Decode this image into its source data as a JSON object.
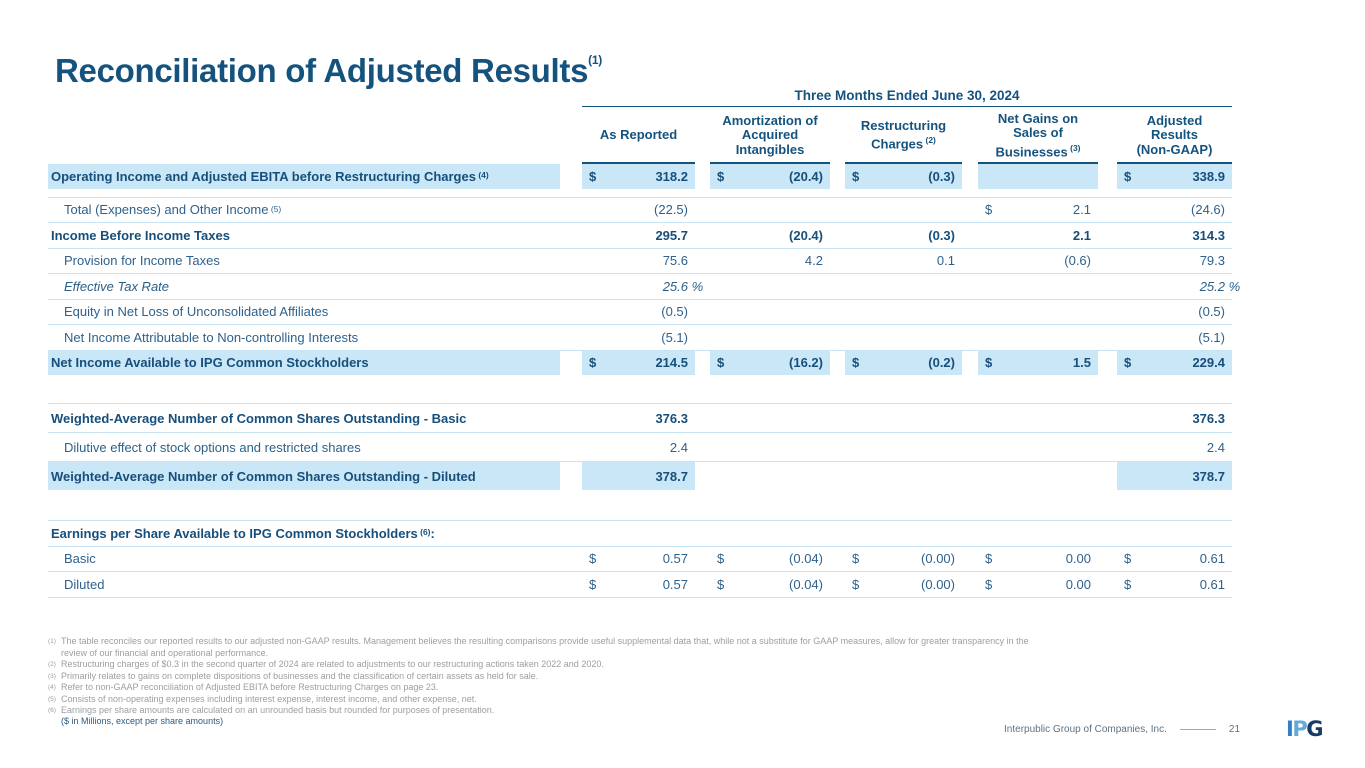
{
  "slide": {
    "title": "Reconciliation of Adjusted Results",
    "title_sup": "(1)",
    "period_header": "Three Months Ended June 30, 2024",
    "currency_note": "($ in Millions, except per share amounts)"
  },
  "table": {
    "columns": [
      {
        "label": "As Reported",
        "sup": ""
      },
      {
        "label": "Amortization of\nAcquired\nIntangibles",
        "sup": ""
      },
      {
        "label": "Restructuring\nCharges",
        "sup": "(2)"
      },
      {
        "label": "Net Gains on\nSales of\nBusinesses",
        "sup": "(3)"
      },
      {
        "label": "Adjusted\nResults\n(Non-GAAP)",
        "sup": ""
      }
    ],
    "rows": [
      {
        "label": "Operating Income and Adjusted EBITA before Restructuring Charges",
        "sup": "(4)",
        "style": "bold",
        "label_hl": true,
        "section": "main",
        "cells": [
          {
            "d": "$",
            "v": "318.2",
            "hl": true
          },
          {
            "d": "$",
            "v": "(20.4)",
            "hl": true
          },
          {
            "d": "$",
            "v": "(0.3)",
            "hl": true
          },
          {
            "hl": true
          },
          {
            "d": "$",
            "v": "338.9",
            "hl": true
          }
        ]
      },
      {
        "label": "Total (Expenses) and Other Income",
        "sup": "(5)",
        "style": "regular",
        "indent": true,
        "rule_top": true,
        "gap_top": true,
        "section": "main",
        "cells": [
          {
            "v": "(22.5)"
          },
          {},
          {},
          {
            "d": "$",
            "v": "2.1"
          },
          {
            "v": "(24.6)"
          }
        ]
      },
      {
        "label": "Income Before Income Taxes",
        "style": "bold",
        "rule_top": true,
        "section": "main",
        "cells": [
          {
            "v": "295.7"
          },
          {
            "v": "(20.4)"
          },
          {
            "v": "(0.3)"
          },
          {
            "v": "2.1"
          },
          {
            "v": "314.3"
          }
        ]
      },
      {
        "label": "Provision for Income Taxes",
        "style": "regular",
        "indent": true,
        "rule_top": true,
        "section": "main",
        "cells": [
          {
            "v": "75.6"
          },
          {
            "v": "4.2"
          },
          {
            "v": "0.1"
          },
          {
            "v": "(0.6)"
          },
          {
            "v": "79.3"
          }
        ]
      },
      {
        "label": "Effective Tax Rate",
        "style": "italic",
        "indent": true,
        "rule_top": true,
        "section": "main",
        "cells": [
          {
            "v": "25.6",
            "suffix": "%"
          },
          {},
          {},
          {},
          {
            "v": "25.2",
            "suffix": "%"
          }
        ]
      },
      {
        "label": "Equity in Net Loss of Unconsolidated Affiliates",
        "style": "regular",
        "indent": true,
        "rule_top": true,
        "section": "main",
        "cells": [
          {
            "v": "(0.5)"
          },
          {},
          {},
          {},
          {
            "v": "(0.5)"
          }
        ]
      },
      {
        "label": "Net Income Attributable to Non-controlling Interests",
        "style": "regular",
        "indent": true,
        "rule_top": true,
        "section": "main",
        "cells": [
          {
            "v": "(5.1)"
          },
          {},
          {},
          {},
          {
            "v": "(5.1)"
          }
        ]
      },
      {
        "label": "Net Income Available to IPG Common Stockholders",
        "style": "bold",
        "label_hl": true,
        "rule_top": true,
        "section": "main",
        "cells": [
          {
            "d": "$",
            "v": "214.5",
            "hl": true
          },
          {
            "d": "$",
            "v": "(16.2)",
            "hl": true
          },
          {
            "d": "$",
            "v": "(0.2)",
            "hl": true
          },
          {
            "d": "$",
            "v": "1.5",
            "hl": true
          },
          {
            "d": "$",
            "v": "229.4",
            "hl": true
          }
        ]
      },
      {
        "spacer": 28
      },
      {
        "label": "Weighted-Average Number of Common Shares Outstanding - Basic",
        "style": "bold",
        "rule_top": true,
        "section": "shares",
        "cells": [
          {
            "v": "376.3"
          },
          {},
          {},
          {},
          {
            "v": "376.3"
          }
        ]
      },
      {
        "label": "Dilutive effect of stock options and restricted shares",
        "style": "regular",
        "indent": true,
        "rule_top": true,
        "section": "shares",
        "cells": [
          {
            "v": "2.4"
          },
          {},
          {},
          {},
          {
            "v": "2.4"
          }
        ]
      },
      {
        "label": "Weighted-Average Number of Common Shares Outstanding - Diluted",
        "style": "bold",
        "label_hl": true,
        "rule_top": true,
        "section": "shares",
        "cells": [
          {
            "v": "378.7",
            "hl": true
          },
          {},
          {},
          {},
          {
            "v": "378.7",
            "hl": true
          }
        ]
      },
      {
        "spacer": 30
      },
      {
        "label": "Earnings per Share Available to IPG Common Stockholders",
        "sup": "(6)",
        "tail": ":",
        "style": "bold",
        "rule_top": true,
        "full_width": true,
        "section": "eps"
      },
      {
        "label": "Basic",
        "style": "regular",
        "indent": true,
        "rule_top": true,
        "section": "eps",
        "cells": [
          {
            "d": "$",
            "v": "0.57"
          },
          {
            "d": "$",
            "v": "(0.04)"
          },
          {
            "d": "$",
            "v": "(0.00)"
          },
          {
            "d": "$",
            "v": "0.00"
          },
          {
            "d": "$",
            "v": "0.61"
          }
        ]
      },
      {
        "label": "Diluted",
        "style": "regular",
        "indent": true,
        "rule_top": true,
        "rule_bottom": true,
        "section": "eps",
        "cells": [
          {
            "d": "$",
            "v": "0.57"
          },
          {
            "d": "$",
            "v": "(0.04)"
          },
          {
            "d": "$",
            "v": "(0.00)"
          },
          {
            "d": "$",
            "v": "0.00"
          },
          {
            "d": "$",
            "v": "0.61"
          }
        ]
      }
    ]
  },
  "footnotes": [
    {
      "sup": "(1)",
      "text": "The table reconciles our reported results to our adjusted non-GAAP results. Management believes the resulting comparisons provide useful supplemental data that, while not a substitute for GAAP measures, allow for greater transparency in the review of our financial and operational performance."
    },
    {
      "sup": "(2)",
      "text": "Restructuring charges of $0.3 in the second quarter of 2024 are related to adjustments to our restructuring actions taken 2022 and 2020."
    },
    {
      "sup": "(3)",
      "text": "Primarily relates to gains on complete dispositions of businesses and the classification of certain assets as held for sale."
    },
    {
      "sup": "(4)",
      "text": "Refer to non-GAAP reconciliation of Adjusted EBITA before Restructuring Charges on page 23."
    },
    {
      "sup": "(5)",
      "text": "Consists of non-operating expenses including interest expense, interest income, and other expense, net."
    },
    {
      "sup": "(6)",
      "text": "Earnings per share amounts are calculated on an unrounded basis but rounded for purposes of presentation."
    }
  ],
  "footer": {
    "company": "Interpublic Group of Companies, Inc.",
    "page": "21",
    "logo_letters": [
      {
        "char": "I",
        "color": "#3181c4"
      },
      {
        "char": "P",
        "color": "#64a9d9"
      },
      {
        "char": "G",
        "color": "#173a66"
      }
    ]
  },
  "colors": {
    "accent": "#15537f",
    "body_text": "#2e618c",
    "highlight": "#c9e7f7",
    "rule_light": "#c6e4f3",
    "footnote_gray": "#9c9ea1",
    "footer_text": "#5d7383"
  }
}
